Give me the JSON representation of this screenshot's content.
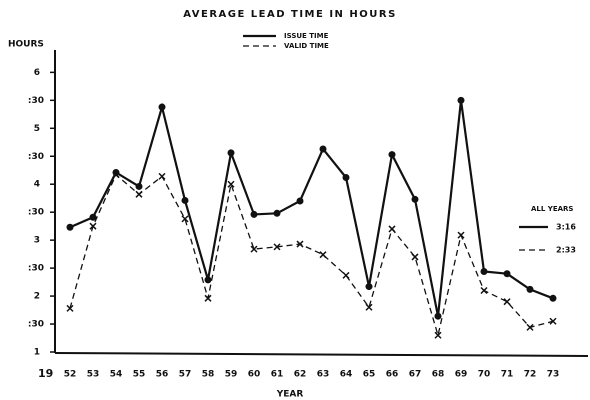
{
  "chart_data": {
    "type": "line",
    "title": "AVERAGE LEAD TIME IN HOURS",
    "ylabel": "HOURS",
    "xlabel": "YEAR",
    "x_prefix": "19",
    "categories": [
      "52",
      "53",
      "54",
      "55",
      "56",
      "57",
      "58",
      "59",
      "60",
      "61",
      "62",
      "63",
      "64",
      "65",
      "66",
      "67",
      "68",
      "69",
      "70",
      "71",
      "72",
      "73"
    ],
    "series": [
      {
        "name": "ISSUE TIME",
        "color": "#111111",
        "dashed": false,
        "marker": "circle",
        "values": [
          3.23,
          3.41,
          4.21,
          3.96,
          5.38,
          3.71,
          2.29,
          4.56,
          3.46,
          3.48,
          3.7,
          4.63,
          4.12,
          2.17,
          4.53,
          3.73,
          1.64,
          5.5,
          2.44,
          2.4,
          2.12,
          1.96
        ]
      },
      {
        "name": "VALID TIME",
        "color": "#111111",
        "dashed": true,
        "marker": "x",
        "values": [
          1.78,
          3.25,
          4.17,
          3.82,
          4.14,
          3.38,
          1.96,
          4.0,
          2.84,
          2.88,
          2.93,
          2.74,
          2.37,
          1.8,
          3.2,
          2.7,
          1.3,
          3.09,
          2.1,
          1.9,
          1.44,
          1.55
        ]
      }
    ],
    "ylim": [
      1,
      6.4
    ],
    "yticks": [
      1,
      {
        "value": 1.5,
        "label": ":30"
      },
      2,
      {
        "value": 2.5,
        "label": ":30"
      },
      3,
      {
        "value": 3.5,
        "label": ":30"
      },
      4,
      {
        "value": 4.5,
        "label": ":30"
      },
      5,
      {
        "value": 5.5,
        "label": ":30"
      },
      6
    ],
    "grid": false,
    "annotation": {
      "title": "ALL YEARS",
      "entries": [
        "3:16",
        "2:33"
      ]
    }
  }
}
